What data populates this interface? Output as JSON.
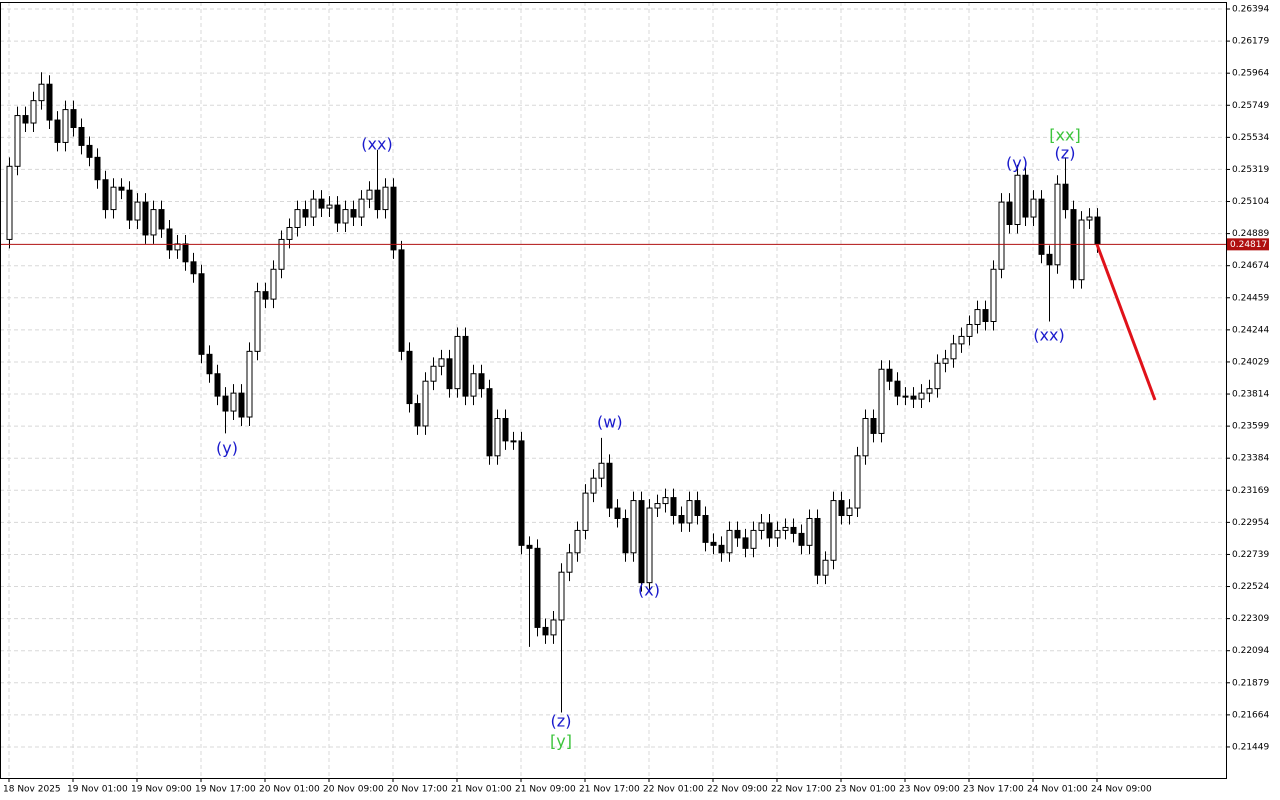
{
  "chart_data": {
    "type": "candlestick",
    "open": [
      0.2485,
      0.2534,
      0.2568,
      0.2563,
      0.2578,
      0.2589,
      0.2565,
      0.255,
      0.2572,
      0.256,
      0.2548,
      0.254,
      0.2525,
      0.2505,
      0.252,
      0.2518,
      0.2498,
      0.251,
      0.2488,
      0.2505,
      0.2492,
      0.2478,
      0.2482,
      0.247,
      0.2462,
      0.2408,
      0.2395,
      0.238,
      0.237,
      0.2382,
      0.2366,
      0.241,
      0.245,
      0.2445,
      0.2465,
      0.2485,
      0.2493,
      0.2505,
      0.25,
      0.2512,
      0.2506,
      0.2508,
      0.2496,
      0.2505,
      0.25,
      0.2512,
      0.2518,
      0.2505,
      0.252,
      0.2478,
      0.241,
      0.2375,
      0.236,
      0.239,
      0.24,
      0.2405,
      0.2385,
      0.242,
      0.238,
      0.2395,
      0.2385,
      0.234,
      0.2365,
      0.235,
      0.235,
      0.228,
      0.2278,
      0.2225,
      0.222,
      0.223,
      0.2262,
      0.2275,
      0.229,
      0.2315,
      0.2325,
      0.2335,
      0.2305,
      0.2298,
      0.2275,
      0.231,
      0.2255,
      0.2305,
      0.2308,
      0.2312,
      0.23,
      0.2295,
      0.231,
      0.23,
      0.2282,
      0.228,
      0.2275,
      0.229,
      0.2285,
      0.2278,
      0.229,
      0.2295,
      0.2285,
      0.229,
      0.2292,
      0.2288,
      0.228,
      0.2298,
      0.226,
      0.227,
      0.231,
      0.23,
      0.2305,
      0.234,
      0.2365,
      0.2355,
      0.2398,
      0.239,
      0.238,
      0.238,
      0.2378,
      0.2382,
      0.2385,
      0.2402,
      0.2405,
      0.2415,
      0.242,
      0.2428,
      0.2438,
      0.243,
      0.2465,
      0.251,
      0.2495,
      0.2528,
      0.25,
      0.2512,
      0.2475,
      0.2468,
      0.2522,
      0.2505,
      0.2458,
      0.2498,
      0.25
    ],
    "high": [
      0.254,
      0.2574,
      0.2574,
      0.2584,
      0.2597,
      0.2595,
      0.2571,
      0.2578,
      0.2578,
      0.2566,
      0.2554,
      0.2546,
      0.2531,
      0.2526,
      0.2526,
      0.2524,
      0.2516,
      0.2516,
      0.2511,
      0.2511,
      0.2498,
      0.2488,
      0.2488,
      0.2476,
      0.2468,
      0.2414,
      0.2401,
      0.2386,
      0.2388,
      0.2388,
      0.2416,
      0.2456,
      0.2456,
      0.2471,
      0.2491,
      0.2499,
      0.2511,
      0.2511,
      0.2518,
      0.2518,
      0.2514,
      0.2514,
      0.2511,
      0.2511,
      0.2518,
      0.2524,
      0.2545,
      0.2526,
      0.2526,
      0.2484,
      0.2416,
      0.2381,
      0.2396,
      0.2406,
      0.2411,
      0.2411,
      0.2426,
      0.2426,
      0.2401,
      0.2401,
      0.2391,
      0.2371,
      0.2371,
      0.2356,
      0.2356,
      0.2286,
      0.2284,
      0.2231,
      0.2236,
      0.2268,
      0.2281,
      0.2296,
      0.2321,
      0.2331,
      0.2352,
      0.2341,
      0.2311,
      0.2304,
      0.2316,
      0.2316,
      0.2311,
      0.2314,
      0.2318,
      0.2318,
      0.2306,
      0.2316,
      0.2316,
      0.2306,
      0.2288,
      0.2286,
      0.2296,
      0.2296,
      0.2291,
      0.2296,
      0.2301,
      0.2301,
      0.2296,
      0.2298,
      0.2298,
      0.2294,
      0.2304,
      0.2304,
      0.2276,
      0.2316,
      0.2316,
      0.2311,
      0.2346,
      0.2371,
      0.2371,
      0.2404,
      0.2404,
      0.2396,
      0.2386,
      0.2386,
      0.2388,
      0.2391,
      0.2408,
      0.2411,
      0.2421,
      0.2426,
      0.2434,
      0.2444,
      0.2444,
      0.2471,
      0.2516,
      0.2516,
      0.2535,
      0.2534,
      0.2518,
      0.2518,
      0.2481,
      0.2528,
      0.254,
      0.2511,
      0.2504,
      0.2506,
      0.2506
    ],
    "low": [
      0.2479,
      0.2528,
      0.2557,
      0.2557,
      0.2572,
      0.2559,
      0.2544,
      0.2544,
      0.2554,
      0.2542,
      0.2534,
      0.2519,
      0.2499,
      0.2499,
      0.2512,
      0.2492,
      0.2492,
      0.2482,
      0.2482,
      0.2486,
      0.2472,
      0.2472,
      0.2464,
      0.2456,
      0.2402,
      0.2389,
      0.2374,
      0.2355,
      0.2364,
      0.236,
      0.236,
      0.2404,
      0.2439,
      0.2439,
      0.2459,
      0.2479,
      0.2487,
      0.2494,
      0.2494,
      0.25,
      0.25,
      0.249,
      0.249,
      0.2494,
      0.2494,
      0.2506,
      0.2499,
      0.2499,
      0.2472,
      0.2404,
      0.2369,
      0.2354,
      0.2354,
      0.2384,
      0.2394,
      0.2379,
      0.2379,
      0.2374,
      0.2374,
      0.2379,
      0.2334,
      0.2334,
      0.2344,
      0.2344,
      0.2274,
      0.2212,
      0.2219,
      0.2214,
      0.2214,
      0.2168,
      0.2256,
      0.2269,
      0.2284,
      0.2309,
      0.2319,
      0.2299,
      0.2292,
      0.2269,
      0.2269,
      0.2249,
      0.2249,
      0.2299,
      0.2302,
      0.2294,
      0.2289,
      0.2289,
      0.2294,
      0.2276,
      0.2274,
      0.2269,
      0.2269,
      0.2279,
      0.2272,
      0.2272,
      0.2284,
      0.2279,
      0.2279,
      0.2284,
      0.2282,
      0.2274,
      0.2274,
      0.2254,
      0.2254,
      0.2264,
      0.2294,
      0.2294,
      0.2299,
      0.2334,
      0.2349,
      0.2349,
      0.2384,
      0.2374,
      0.2374,
      0.2372,
      0.2372,
      0.2376,
      0.2379,
      0.2396,
      0.2399,
      0.2409,
      0.2414,
      0.2422,
      0.2424,
      0.2424,
      0.2459,
      0.2489,
      0.2489,
      0.2494,
      0.2494,
      0.2469,
      0.243,
      0.2462,
      0.2499,
      0.2452,
      0.2452,
      0.2492,
      0.2476
    ],
    "close": [
      0.2534,
      0.2568,
      0.2563,
      0.2578,
      0.2589,
      0.2565,
      0.255,
      0.2572,
      0.256,
      0.2548,
      0.254,
      0.2525,
      0.2505,
      0.252,
      0.2518,
      0.2498,
      0.251,
      0.2488,
      0.2505,
      0.2492,
      0.2478,
      0.2482,
      0.247,
      0.2462,
      0.2408,
      0.2395,
      0.238,
      0.237,
      0.2382,
      0.2366,
      0.241,
      0.245,
      0.2445,
      0.2465,
      0.2485,
      0.2493,
      0.2505,
      0.25,
      0.2512,
      0.2506,
      0.2508,
      0.2496,
      0.2505,
      0.25,
      0.2512,
      0.2518,
      0.2505,
      0.252,
      0.2478,
      0.241,
      0.2375,
      0.236,
      0.239,
      0.24,
      0.2405,
      0.2385,
      0.242,
      0.238,
      0.2395,
      0.2385,
      0.234,
      0.2365,
      0.235,
      0.235,
      0.228,
      0.2278,
      0.2225,
      0.222,
      0.223,
      0.2262,
      0.2275,
      0.229,
      0.2315,
      0.2325,
      0.2335,
      0.2305,
      0.2298,
      0.2275,
      0.231,
      0.2255,
      0.2305,
      0.2308,
      0.2312,
      0.23,
      0.2295,
      0.231,
      0.23,
      0.2282,
      0.228,
      0.2275,
      0.229,
      0.2285,
      0.2278,
      0.229,
      0.2295,
      0.2285,
      0.229,
      0.2292,
      0.2288,
      0.228,
      0.2298,
      0.226,
      0.227,
      0.231,
      0.23,
      0.2305,
      0.234,
      0.2365,
      0.2355,
      0.2398,
      0.239,
      0.238,
      0.238,
      0.2378,
      0.2382,
      0.2385,
      0.2402,
      0.2405,
      0.2415,
      0.242,
      0.2428,
      0.2438,
      0.243,
      0.2465,
      0.251,
      0.2495,
      0.2528,
      0.25,
      0.2512,
      0.2475,
      0.2468,
      0.2522,
      0.2505,
      0.2458,
      0.2498,
      0.25,
      0.2482
    ],
    "up_color": "#ffffff",
    "down_color": "#000000",
    "outline_color": "#000000",
    "xlim": [
      -1.125,
      152.125
    ],
    "xticks": [
      {
        "value": 0,
        "label": "18 Nov 2025"
      },
      {
        "value": 8,
        "label": "19 Nov 01:00"
      },
      {
        "value": 16,
        "label": "19 Nov 09:00"
      },
      {
        "value": 24,
        "label": "19 Nov 17:00"
      },
      {
        "value": 32,
        "label": "20 Nov 01:00"
      },
      {
        "value": 40,
        "label": "20 Nov 09:00"
      },
      {
        "value": 48,
        "label": "20 Nov 17:00"
      },
      {
        "value": 56,
        "label": "21 Nov 01:00"
      },
      {
        "value": 64,
        "label": "21 Nov 09:00"
      },
      {
        "value": 72,
        "label": "21 Nov 17:00"
      },
      {
        "value": 80,
        "label": "22 Nov 01:00"
      },
      {
        "value": 88,
        "label": "22 Nov 09:00"
      },
      {
        "value": 96,
        "label": "22 Nov 17:00"
      },
      {
        "value": 104,
        "label": "23 Nov 01:00"
      },
      {
        "value": 112,
        "label": "23 Nov 09:00"
      },
      {
        "value": 120,
        "label": "23 Nov 17:00"
      },
      {
        "value": 128,
        "label": "24 Nov 01:00"
      },
      {
        "value": 136,
        "label": "24 Nov 09:00"
      }
    ],
    "ylim": [
      0.21241,
      0.26441
    ],
    "yticks": [
      0.26394,
      0.26179,
      0.25964,
      0.25749,
      0.25534,
      0.25319,
      0.25104,
      0.24889,
      0.24674,
      0.24459,
      0.24244,
      0.24029,
      0.23814,
      0.23599,
      0.23384,
      0.23169,
      0.22954,
      0.22739,
      0.22524,
      0.22309,
      0.22094,
      0.21879,
      0.21664,
      0.21449
    ],
    "grid": true,
    "current_price": 0.24817,
    "current_price_color": "#b01010",
    "annotations": [
      {
        "text": "(y)",
        "x": 27.25,
        "y": 0.23446,
        "color": "#1a1acc"
      },
      {
        "text": "(xx)",
        "x": 46,
        "y": 0.25483,
        "color": "#1a1acc"
      },
      {
        "text": "(w)",
        "x": 75.1,
        "y": 0.2362,
        "color": "#1a1acc"
      },
      {
        "text": "(z)",
        "x": 69,
        "y": 0.21616,
        "color": "#1a1acc"
      },
      {
        "text": "[y]",
        "x": 69,
        "y": 0.21482,
        "color": "#3cc43c"
      },
      {
        "text": "(x)",
        "x": 80,
        "y": 0.22494,
        "color": "#1a1acc"
      },
      {
        "text": "(y)",
        "x": 126,
        "y": 0.25355,
        "color": "#1a1acc"
      },
      {
        "text": "[xx]",
        "x": 132,
        "y": 0.25543,
        "color": "#3cc43c"
      },
      {
        "text": "(z)",
        "x": 132,
        "y": 0.25422,
        "color": "#1a1acc"
      },
      {
        "text": "(xx)",
        "x": 130,
        "y": 0.24203,
        "color": "#1a1acc"
      }
    ],
    "forecast": {
      "x": [
        136,
        143.25
      ],
      "y": [
        0.24817,
        0.23774
      ],
      "color": "#e0121a"
    }
  }
}
